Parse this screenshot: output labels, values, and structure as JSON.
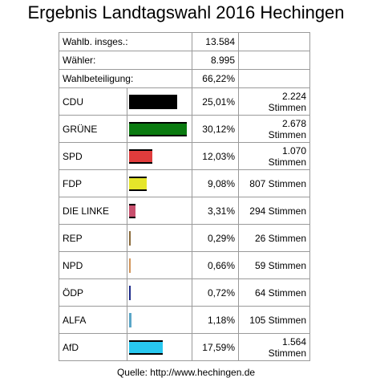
{
  "title": "Ergebnis Landtagswahl 2016 Hechingen",
  "summary": [
    {
      "label": "Wahlb. insges.:",
      "value": "13.584"
    },
    {
      "label": "Wähler:",
      "value": "8.995"
    },
    {
      "label": "Wahlbeteiligung:",
      "value": "66,22%"
    }
  ],
  "chart_data": {
    "type": "bar",
    "categories": [
      "CDU",
      "GRÜNE",
      "SPD",
      "FDP",
      "DIE LINKE",
      "REP",
      "NPD",
      "ÖDP",
      "ALFA",
      "AfD"
    ],
    "values": [
      25.01,
      30.12,
      12.03,
      9.08,
      3.31,
      0.29,
      0.66,
      0.72,
      1.18,
      17.59
    ],
    "percent_labels": [
      "25,01%",
      "30,12%",
      "12,03%",
      "9,08%",
      "3,31%",
      "0,29%",
      "0,66%",
      "0,72%",
      "1,18%",
      "17,59%"
    ],
    "votes": [
      "2.224 Stimmen",
      "2.678 Stimmen",
      "1.070 Stimmen",
      "807 Stimmen",
      "294 Stimmen",
      "26 Stimmen",
      "59 Stimmen",
      "64 Stimmen",
      "105 Stimmen",
      "1.564 Stimmen"
    ],
    "colors": [
      "#000000",
      "#0a7a10",
      "#e03c3c",
      "#e6e62a",
      "#c8506e",
      "#8a6a3a",
      "#d2955a",
      "#1c2a8a",
      "#5aa6c8",
      "#28c8f0"
    ]
  },
  "source": "Quelle: http://www.hechingen.de"
}
